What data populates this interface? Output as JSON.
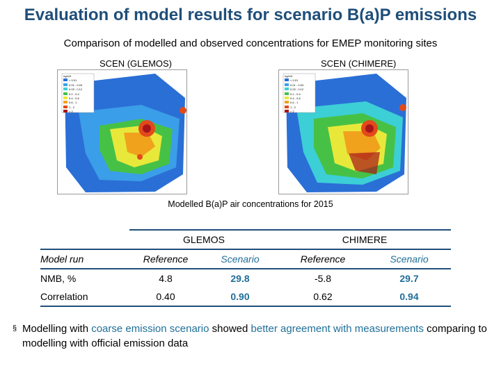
{
  "title": "Evaluation of model results for scenario B(a)P emissions",
  "subtitle": "Comparison of modelled and observed concentrations for EMEP monitoring sites",
  "maps": {
    "left_label": "SCEN (GLEMOS)",
    "right_label": "SCEN (CHIMERE)",
    "legend_unit": "ng/m3",
    "legend_left": [
      "< 0.01",
      "0.01 - 0.03",
      "0.03 - 0.12",
      "0.2 - 0.4",
      "0.4 - 0.6",
      "0.6 - 1",
      "1 - 2",
      "> 2"
    ],
    "legend_right": [
      "< 0.01",
      "0.01 - 0.03",
      "0.03 - 0.12",
      "0.2 - 0.4",
      "0.4 - 0.6",
      "0.6 - 1",
      "1 - 2",
      "> 2"
    ],
    "legend_colors": [
      "#2a6fd6",
      "#3b9ee8",
      "#3ccfd6",
      "#46c146",
      "#e8e83a",
      "#f0a21d",
      "#e24a1b",
      "#a8141a"
    ],
    "caption": "Modelled B(a)P air concentrations for 2015"
  },
  "table": {
    "group_glemos": "GLEMOS",
    "group_chimere": "CHIMERE",
    "header": {
      "row_label": "Model run",
      "glemos_ref": "Reference",
      "glemos_scen": "Scenario",
      "chimere_ref": "Reference",
      "chimere_scen": "Scenario"
    },
    "rows": [
      {
        "label": "NMB, %",
        "glemos_ref": "4.8",
        "glemos_scen": "29.8",
        "chimere_ref": "-5.8",
        "chimere_scen": "29.7"
      },
      {
        "label": "Correlation",
        "glemos_ref": "0.40",
        "glemos_scen": "0.90",
        "chimere_ref": "0.62",
        "chimere_scen": "0.94"
      }
    ]
  },
  "bullet": {
    "marker": "§",
    "part1": "Modelling with ",
    "part2": "coarse emission scenario",
    "part3": " showed ",
    "part4": "better agreement with measurements",
    "part5": " comparing to modelling with official emission data"
  }
}
